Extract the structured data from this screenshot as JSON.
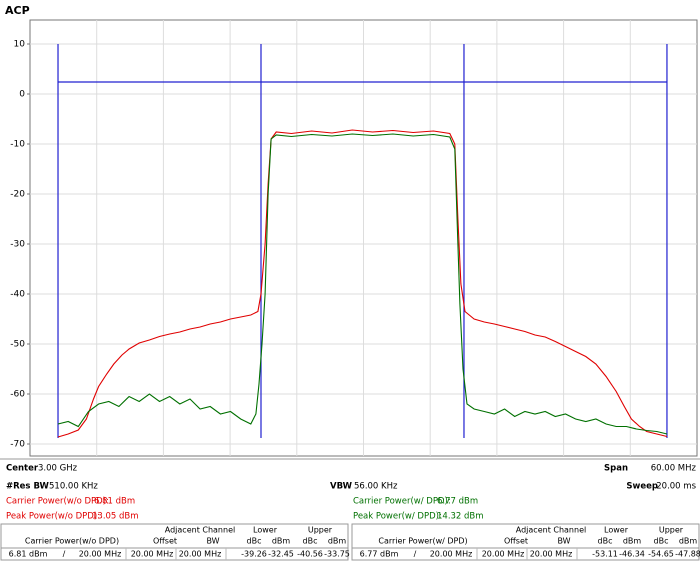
{
  "chart_data": {
    "type": "line",
    "title": "ACP",
    "ylim": [
      -72.4,
      14.8
    ],
    "yticks": [
      10,
      0,
      -10,
      -20,
      -30,
      -40,
      -50,
      -60,
      -70
    ],
    "xlim": [
      2967.24,
      3032.96
    ],
    "grid": true,
    "channel_edges": [
      2970,
      2990,
      3010,
      3030
    ],
    "channel_color": "#2020d0",
    "reference_level": 2.4,
    "series": [
      {
        "color": "#e00000",
        "x": [
          2970,
          2971,
          2972,
          2972.8,
          2973.5,
          2974,
          2974.8,
          2975.5,
          2976.3,
          2977,
          2978,
          2979,
          2980,
          2981,
          2982,
          2983,
          2984,
          2985,
          2986,
          2987,
          2988,
          2989,
          2989.7,
          2990,
          2990.4,
          2990.7,
          2991,
          2991.5,
          2993,
          2995,
          2997,
          2999,
          3001,
          3003,
          3005,
          3007,
          3008.6,
          3009.1,
          3009.4,
          3009.7,
          3010.1,
          3011,
          3012,
          3013,
          3014,
          3015,
          3016,
          3017,
          3018,
          3019,
          3020,
          3021,
          3022,
          3023,
          3024,
          3025,
          3025.8,
          3026.5,
          3027.3,
          3028,
          3029,
          3030
        ],
        "values": [
          -68.6,
          -68,
          -67.2,
          -65,
          -61,
          -58.5,
          -56,
          -54,
          -52.2,
          -51,
          -49.8,
          -49.2,
          -48.5,
          -48,
          -47.6,
          -47,
          -46.6,
          -46,
          -45.6,
          -45,
          -44.6,
          -44.2,
          -43.5,
          -40,
          -30,
          -18,
          -9,
          -7.6,
          -7.9,
          -7.4,
          -7.8,
          -7.2,
          -7.6,
          -7.3,
          -7.7,
          -7.4,
          -7.9,
          -10,
          -25,
          -38,
          -43.5,
          -45,
          -45.6,
          -46,
          -46.5,
          -47,
          -47.5,
          -48.2,
          -48.6,
          -49.5,
          -50.5,
          -51.5,
          -52.5,
          -54,
          -56.5,
          -59.5,
          -62.5,
          -65,
          -66.5,
          -67.5,
          -68,
          -68.5
        ]
      },
      {
        "color": "#007000",
        "x": [
          2970,
          2971,
          2972,
          2973,
          2974,
          2975,
          2976,
          2977,
          2978,
          2979,
          2980,
          2981,
          2982,
          2983,
          2984,
          2985,
          2986,
          2987,
          2988,
          2989,
          2989.5,
          2989.8,
          2990.1,
          2990.4,
          2990.7,
          2991,
          2991.5,
          2993,
          2995,
          2997,
          2999,
          3001,
          3003,
          3005,
          3007,
          3008.6,
          3009.1,
          3009.4,
          3009.6,
          3009.9,
          3010.3,
          3011,
          3012,
          3013,
          3014,
          3015,
          3016,
          3017,
          3018,
          3019,
          3020,
          3021,
          3022,
          3023,
          3024,
          3025,
          3026,
          3027,
          3028,
          3029,
          3030
        ],
        "values": [
          -66,
          -65.5,
          -66.5,
          -63.5,
          -62,
          -61.5,
          -62.5,
          -60.5,
          -61.5,
          -60,
          -61.5,
          -60.5,
          -62,
          -61,
          -63,
          -62.5,
          -64,
          -63.5,
          -65,
          -66,
          -64,
          -58,
          -50,
          -40,
          -20,
          -9,
          -8.2,
          -8.5,
          -8.1,
          -8.4,
          -8,
          -8.3,
          -8,
          -8.4,
          -8.1,
          -8.6,
          -11,
          -30,
          -42,
          -55,
          -62,
          -63,
          -63.5,
          -64,
          -63,
          -64.5,
          -63.5,
          -64,
          -63.5,
          -64.5,
          -64,
          -65,
          -65.5,
          -65,
          -66,
          -66.5,
          -66.5,
          -67,
          -67.3,
          -67.5,
          -68
        ]
      }
    ]
  },
  "info": {
    "center_label": "Center",
    "center_value": "3.00 GHz",
    "span_label": "Span",
    "span_value": "60.00 MHz",
    "rbw_label": "#Res BW",
    "rbw_value": "510.00 KHz",
    "vbw_label": "VBW",
    "vbw_value": "56.00 KHz",
    "sweep_label": "Sweep",
    "sweep_value": "20.00 ms",
    "carrier_wo_label": "Carrier Power(w/o DPD):",
    "carrier_wo_value": "6.81 dBm",
    "peak_wo_label": "Peak Power(w/o DPD):",
    "peak_wo_value": "13.05 dBm",
    "carrier_w_label": "Carrier Power(w/ DPD):",
    "carrier_w_value": "6.77 dBm",
    "peak_w_label": "Peak Power(w/ DPD):",
    "peak_w_value": "14.32 dBm"
  },
  "tables": [
    {
      "head1": [
        "Adjacent Channel",
        "Lower",
        "Upper"
      ],
      "head2": [
        "Carrier Power(w/o DPD)",
        "Offset",
        "BW",
        "dBc",
        "dBm",
        "dBc",
        "dBm"
      ],
      "row": [
        "6.81 dBm",
        "/",
        "20.00 MHz",
        "20.00 MHz",
        "20.00 MHz",
        "-39.26",
        "-32.45",
        "-40.56",
        "-33.75"
      ]
    },
    {
      "head1": [
        "Adjacent Channel",
        "Lower",
        "Upper"
      ],
      "head2": [
        "Carrier Power(w/ DPD)",
        "Offset",
        "BW",
        "dBc",
        "dBm",
        "dBc",
        "dBm"
      ],
      "row": [
        "6.77 dBm",
        "/",
        "20.00 MHz",
        "20.00 MHz",
        "20.00 MHz",
        "-53.11",
        "-46.34",
        "-54.65",
        "-47.88"
      ]
    }
  ]
}
